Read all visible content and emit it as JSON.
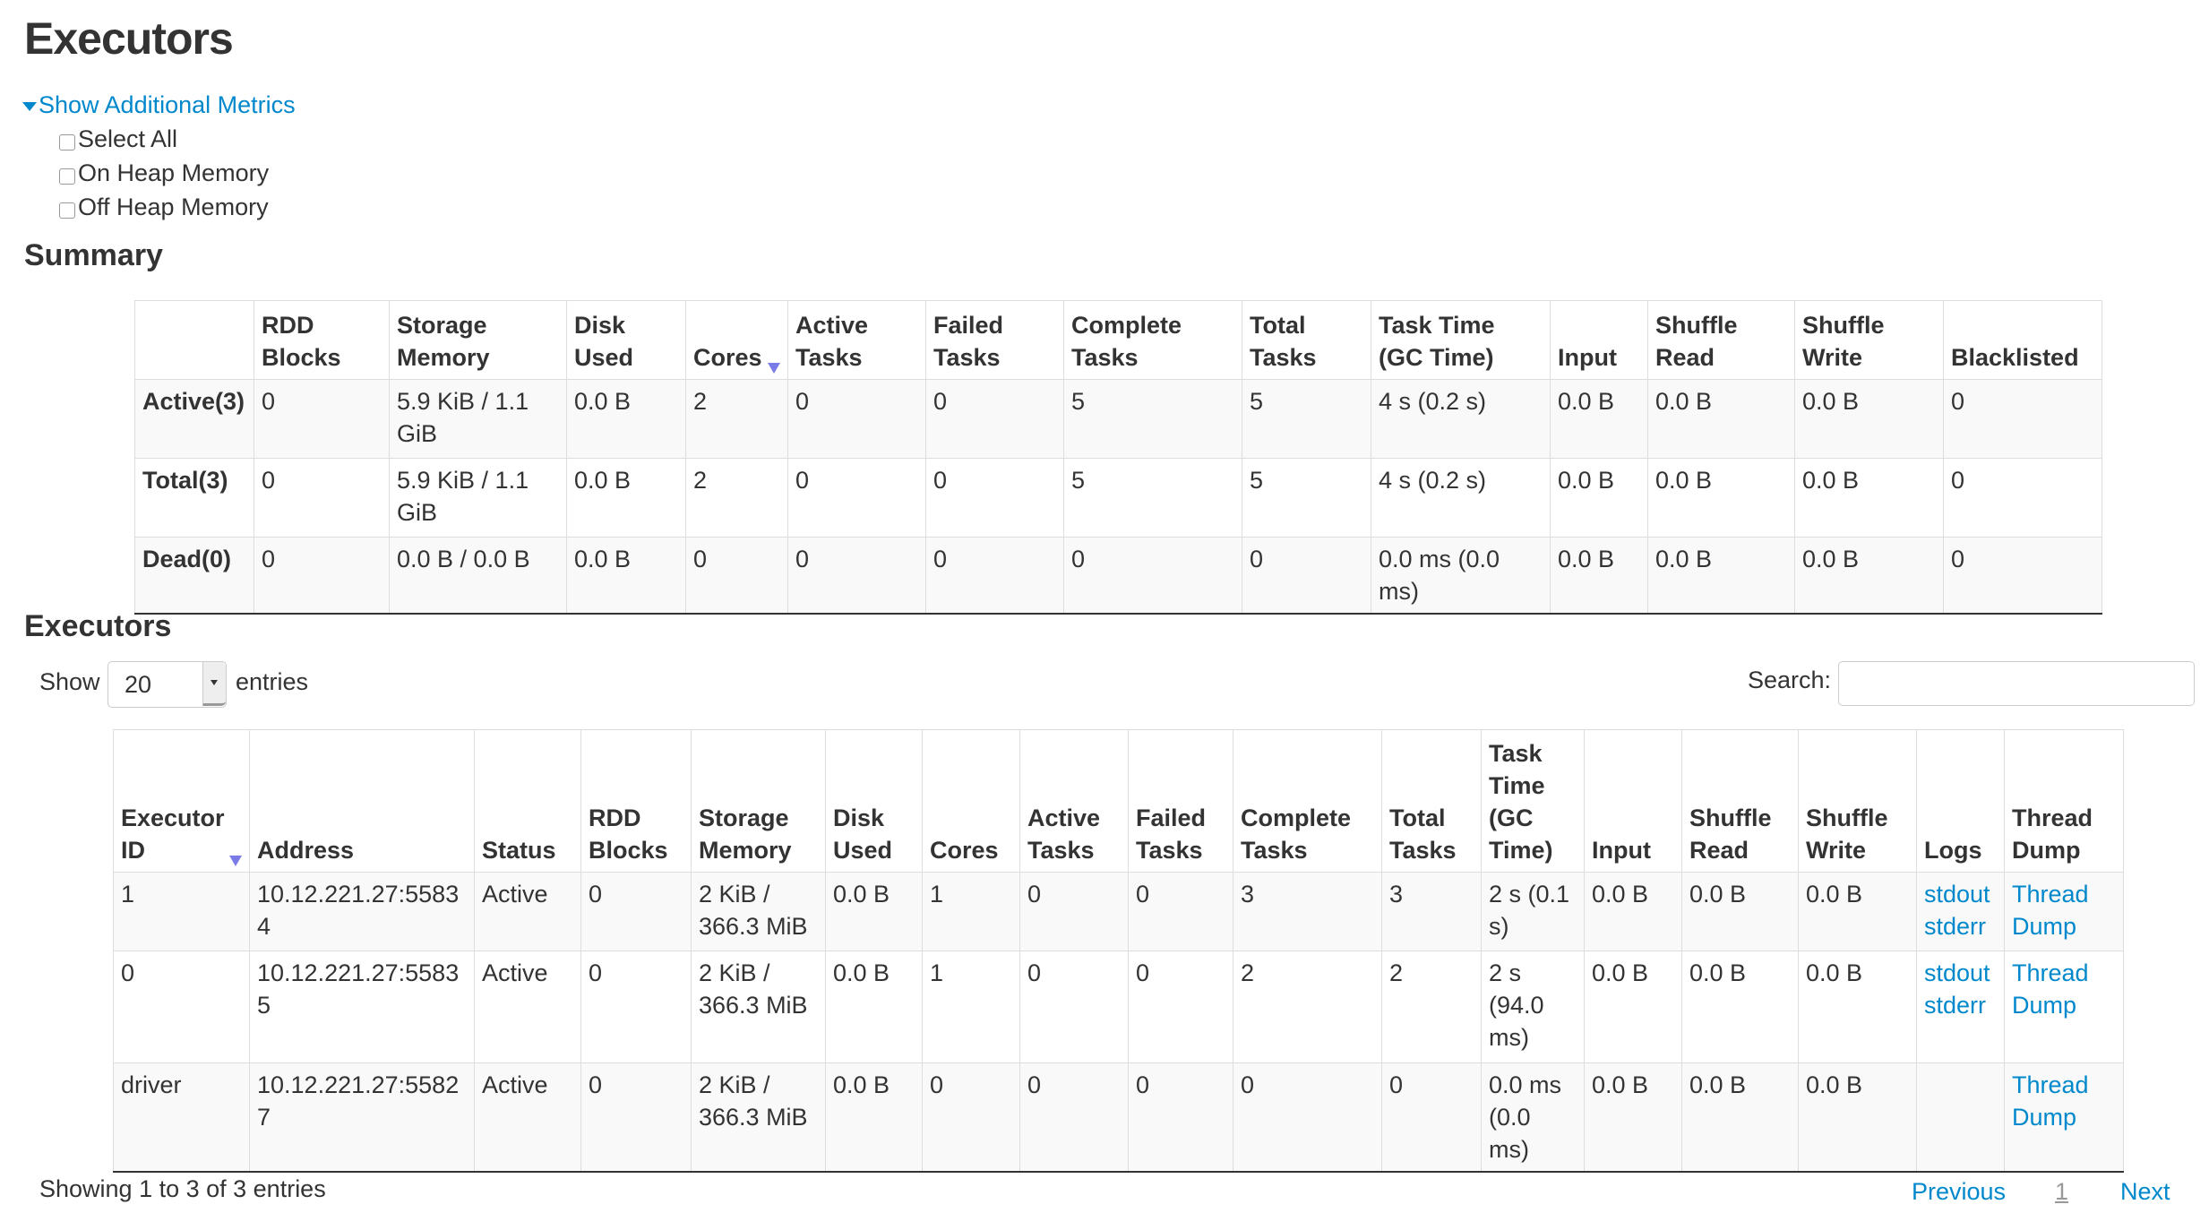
{
  "page_title": "Executors",
  "metrics": {
    "toggle_label": "Show Additional Metrics",
    "options": [
      {
        "label": "Select All",
        "checked": false
      },
      {
        "label": "On Heap Memory",
        "checked": false
      },
      {
        "label": "Off Heap Memory",
        "checked": false
      }
    ]
  },
  "summary": {
    "title": "Summary",
    "columns": [
      "",
      "RDD Blocks",
      "Storage Memory",
      "Disk Used",
      "Cores",
      "Active Tasks",
      "Failed Tasks",
      "Complete Tasks",
      "Total Tasks",
      "Task Time (GC Time)",
      "Input",
      "Shuffle Read",
      "Shuffle Write",
      "Blacklisted"
    ],
    "sorted_column": "Cores",
    "rows": [
      [
        "Active(3)",
        "0",
        "5.9 KiB / 1.1 GiB",
        "0.0 B",
        "2",
        "0",
        "0",
        "5",
        "5",
        "4 s (0.2 s)",
        "0.0 B",
        "0.0 B",
        "0.0 B",
        "0"
      ],
      [
        "Total(3)",
        "0",
        "5.9 KiB / 1.1 GiB",
        "0.0 B",
        "2",
        "0",
        "0",
        "5",
        "5",
        "4 s (0.2 s)",
        "0.0 B",
        "0.0 B",
        "0.0 B",
        "0"
      ],
      [
        "Dead(0)",
        "0",
        "0.0 B / 0.0 B",
        "0.0 B",
        "0",
        "0",
        "0",
        "0",
        "0",
        "0.0 ms (0.0 ms)",
        "0.0 B",
        "0.0 B",
        "0.0 B",
        "0"
      ]
    ]
  },
  "executors": {
    "title": "Executors",
    "show_label": "Show",
    "page_size": "20",
    "entries_label": "entries",
    "search_label": "Search:",
    "search_value": "",
    "columns": [
      "Executor ID",
      "Address",
      "Status",
      "RDD Blocks",
      "Storage Memory",
      "Disk Used",
      "Cores",
      "Active Tasks",
      "Failed Tasks",
      "Complete Tasks",
      "Total Tasks",
      "Task Time (GC Time)",
      "Input",
      "Shuffle Read",
      "Shuffle Write",
      "Logs",
      "Thread Dump"
    ],
    "sorted_column": "Executor ID",
    "rows": [
      {
        "cells": [
          "1",
          "10.12.221.27:55834",
          "Active",
          "0",
          "2 KiB / 366.3 MiB",
          "0.0 B",
          "1",
          "0",
          "0",
          "3",
          "3",
          "2 s (0.1 s)",
          "0.0 B",
          "0.0 B",
          "0.0 B"
        ],
        "logs": [
          "stdout",
          "stderr"
        ],
        "thread_dump": "Thread Dump"
      },
      {
        "cells": [
          "0",
          "10.12.221.27:55835",
          "Active",
          "0",
          "2 KiB / 366.3 MiB",
          "0.0 B",
          "1",
          "0",
          "0",
          "2",
          "2",
          "2 s (94.0 ms)",
          "0.0 B",
          "0.0 B",
          "0.0 B"
        ],
        "logs": [
          "stdout",
          "stderr"
        ],
        "thread_dump": "Thread Dump"
      },
      {
        "cells": [
          "driver",
          "10.12.221.27:55827",
          "Active",
          "0",
          "2 KiB / 366.3 MiB",
          "0.0 B",
          "0",
          "0",
          "0",
          "0",
          "0",
          "0.0 ms (0.0 ms)",
          "0.0 B",
          "0.0 B",
          "0.0 B"
        ],
        "logs": [],
        "thread_dump": "Thread Dump"
      }
    ],
    "info": "Showing 1 to 3 of 3 entries",
    "pagination": {
      "previous": "Previous",
      "current": "1",
      "next": "Next"
    }
  },
  "colors": {
    "link": "#0088cc",
    "sort_arrow": "#7b7be8",
    "stripe": "#f9f9f9"
  }
}
